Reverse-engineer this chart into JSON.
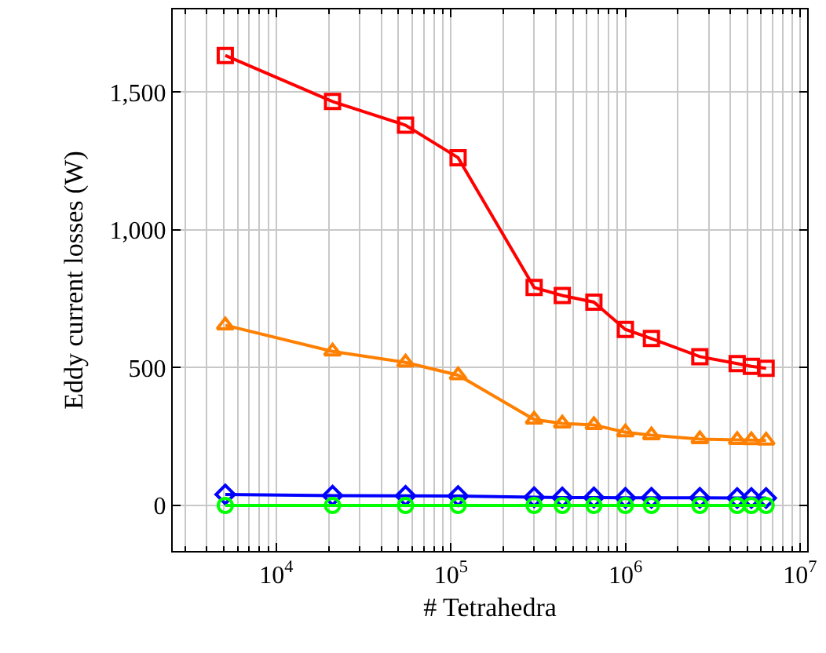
{
  "chart_data": {
    "type": "line",
    "xlabel": "# Tetrahedra",
    "ylabel": "Eddy current losses (W)",
    "log": "x",
    "grid": true,
    "legend": false,
    "x": [
      5100,
      21000,
      55000,
      110000,
      300000,
      435000,
      660000,
      1000000,
      1410000,
      2670000,
      4370000,
      5270000,
      6400000
    ],
    "xlim": [
      2550,
      11000000
    ],
    "xticks": [
      {
        "value": 10000,
        "label": "10$^{4}$"
      },
      {
        "value": 100000,
        "label": "10$^{5}$"
      },
      {
        "value": 1000000,
        "label": "10$^{6}$"
      },
      {
        "value": 10000000,
        "label": "10$^{7}$"
      }
    ],
    "ylim": [
      -165,
      1800
    ],
    "yticks": [
      {
        "value": 0,
        "label": "0"
      },
      {
        "value": 500,
        "label": "500"
      },
      {
        "value": 1000,
        "label": "1,000"
      },
      {
        "value": 1500,
        "label": "1,500"
      }
    ],
    "series": [
      {
        "color": "#ff0000",
        "marker": "square",
        "values": [
          1633,
          1466,
          1380,
          1262,
          791,
          762,
          738,
          639,
          606,
          540,
          515,
          505,
          498
        ]
      },
      {
        "color": "#ff8000",
        "marker": "triangle",
        "values": [
          654,
          559,
          519,
          473,
          312,
          298,
          292,
          266,
          255,
          241,
          238,
          237,
          236
        ]
      },
      {
        "color": "#0000ff",
        "marker": "diamond",
        "values": [
          40,
          36,
          35,
          34,
          30,
          29,
          29,
          28,
          28,
          28,
          27,
          27,
          27
        ]
      },
      {
        "color": "#00ff00",
        "marker": "circle",
        "values": [
          0,
          0,
          0,
          0,
          0,
          0,
          0,
          0,
          0,
          0,
          0,
          0,
          0
        ]
      }
    ]
  }
}
